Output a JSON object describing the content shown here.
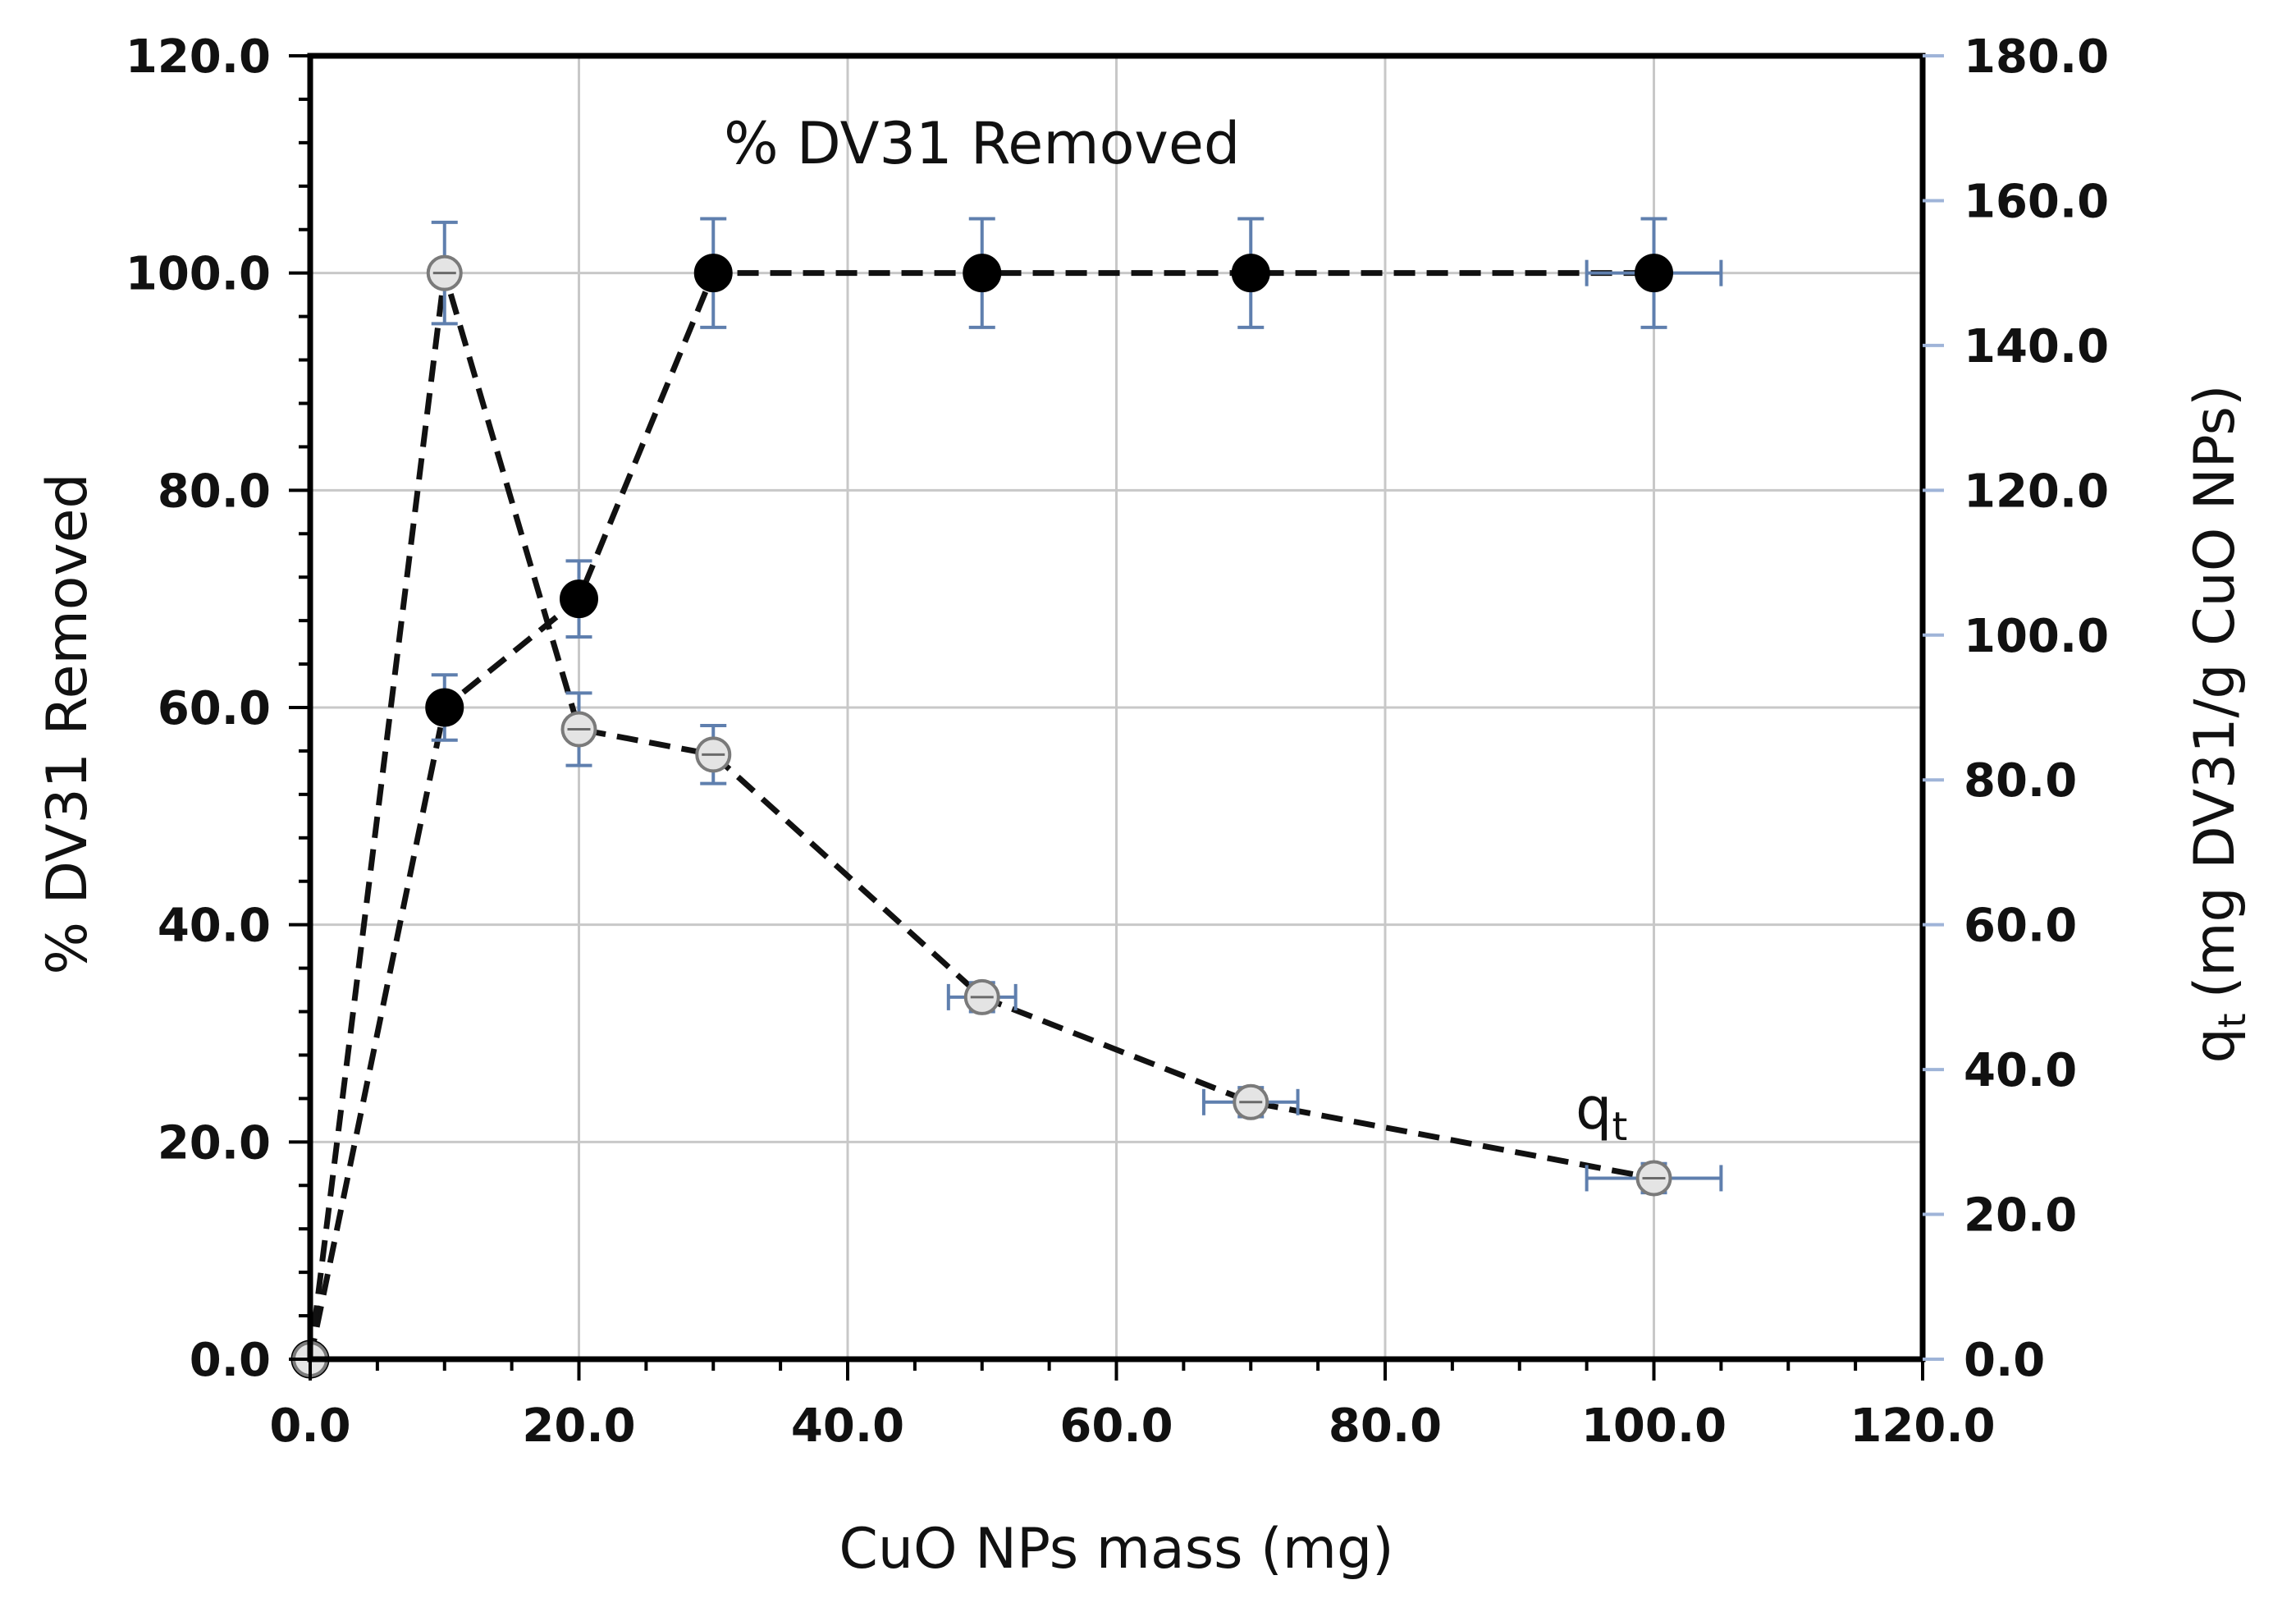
{
  "chart_data": {
    "type": "scatter",
    "title": "",
    "xlabel": "CuO NPs mass (mg)",
    "ylabel_left": "% DV31  Removed",
    "ylabel_right": "(mg DV31/g CuO NPs)",
    "ylabel_right_symbol": "q",
    "ylabel_right_subscript": "t",
    "xlim": [
      0,
      120
    ],
    "ylim_left": [
      0,
      120
    ],
    "ylim_right": [
      0,
      180
    ],
    "x_ticks": [
      "0.0",
      "20.0",
      "40.0",
      "60.0",
      "80.0",
      "100.0",
      "120.0"
    ],
    "y_ticks_left": [
      "0.0",
      "20.0",
      "40.0",
      "60.0",
      "80.0",
      "100.0",
      "120.0"
    ],
    "y_ticks_right": [
      "0.0",
      "20.0",
      "40.0",
      "60.0",
      "80.0",
      "100.0",
      "120.0",
      "140.0",
      "160.0",
      "180.0"
    ],
    "grid": true,
    "series": [
      {
        "name": "% DV31  Removed",
        "axis": "left",
        "marker": "filled-circle",
        "x": [
          0,
          10,
          20,
          30,
          50,
          70,
          100
        ],
        "y": [
          0,
          60,
          70,
          100,
          100,
          100,
          100
        ],
        "y_err": [
          0,
          3,
          3.5,
          5,
          5,
          5,
          5
        ],
        "x_err": [
          0,
          0,
          0,
          0,
          0,
          0,
          5
        ]
      },
      {
        "name": "q",
        "name_subscript": "t",
        "axis": "right",
        "marker": "open-circle",
        "x": [
          0,
          10,
          20,
          30,
          50,
          70,
          100
        ],
        "y": [
          0,
          150,
          87,
          83.5,
          50,
          35.5,
          25
        ],
        "y_err": [
          0,
          7,
          5,
          4,
          2,
          2,
          2
        ],
        "x_err": [
          0,
          0,
          0,
          0,
          2.5,
          3.5,
          5
        ]
      }
    ],
    "annotations": [
      {
        "text": "% DV31  Removed",
        "x": 50,
        "y": 112,
        "axis": "left"
      },
      {
        "text": "q",
        "subscript": "t",
        "x": 96,
        "y": 33,
        "axis": "right"
      }
    ],
    "colors": {
      "line": "#111111",
      "error_bar": "#5f7fae",
      "grid": "#c8c8c8",
      "open_marker": "#9a9a9a"
    }
  }
}
